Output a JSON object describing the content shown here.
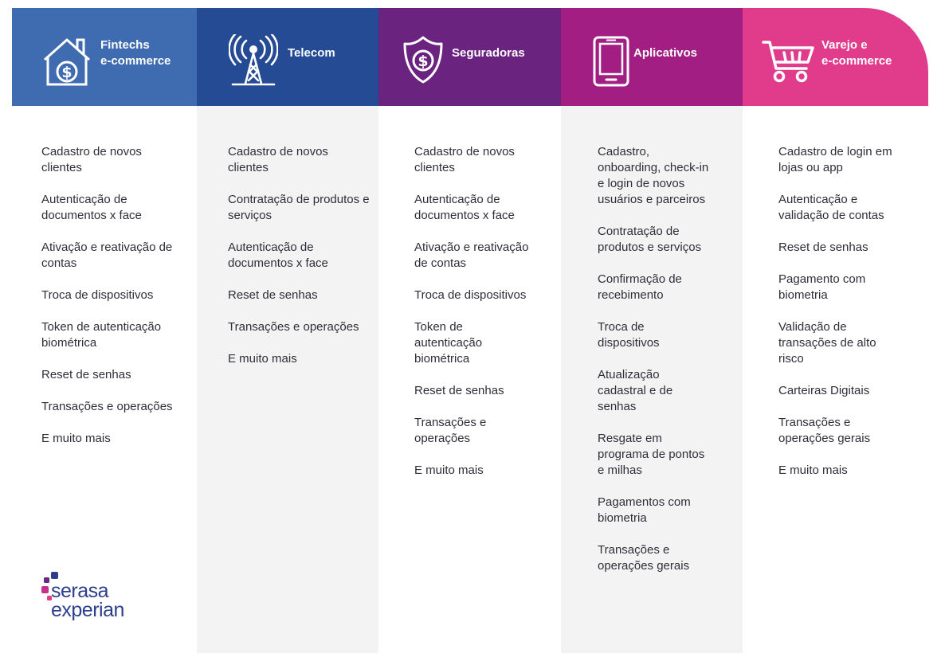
{
  "colors": {
    "fintechs": "#3f6cb0",
    "telecom": "#244b94",
    "seguradoras": "#6b2380",
    "aplicativos": "#a21e83",
    "varejo": "#e13c8c",
    "text": "#2e2e3a",
    "logo_blue": "#2c3e8c",
    "logo_pink": "#c5318a",
    "logo_purple": "#6b2a7d"
  },
  "columns": [
    {
      "title": [
        "Fintechs",
        "e-commerce"
      ],
      "icon": "house-dollar-icon",
      "items": [
        "Cadastro de novos clientes",
        "Autenticação de documentos x face",
        "Ativação e reativação de contas",
        "Troca de dispositivos",
        "Token de autenticação biométrica",
        "Reset de senhas",
        "Transações e operações",
        "E muito mais"
      ]
    },
    {
      "title": [
        "Telecom"
      ],
      "icon": "antenna-tower-icon",
      "items": [
        "Cadastro de novos clientes",
        "Contratação de produtos e serviços",
        "Autenticação de documentos x face",
        "Reset de senhas",
        "Transações e operações",
        "E muito mais"
      ]
    },
    {
      "title": [
        "Seguradoras"
      ],
      "icon": "shield-dollar-icon",
      "items": [
        "Cadastro de novos clientes",
        "Autenticação de documentos x face",
        "Ativação e reativação de contas",
        "Troca de dispositivos",
        "Token de autenticação biométrica",
        "Reset de senhas",
        "Transações e operações",
        "E muito mais"
      ]
    },
    {
      "title": [
        "Aplicativos"
      ],
      "icon": "smartphone-icon",
      "items": [
        "Cadastro, onboarding, check-in e login de novos usuários e parceiros",
        "Contratação de produtos e serviços",
        "Confirmação de recebimento",
        "Troca de dispositivos",
        "Atualização cadastral e de senhas",
        "Resgate em programa de pontos e milhas",
        "Pagamentos com biometria",
        "Transações e operações gerais"
      ]
    },
    {
      "title": [
        "Varejo e",
        "e-commerce"
      ],
      "icon": "shopping-cart-icon",
      "items": [
        "Cadastro de login em lojas ou app",
        "Autenticação e validação de contas",
        "Reset de senhas",
        "Pagamento com biometria",
        "Validação de transações de alto risco",
        "Carteiras Digitais",
        "Transações e operações gerais",
        "E muito mais"
      ]
    }
  ],
  "logo": {
    "line1": "serasa",
    "line2": "experian"
  }
}
